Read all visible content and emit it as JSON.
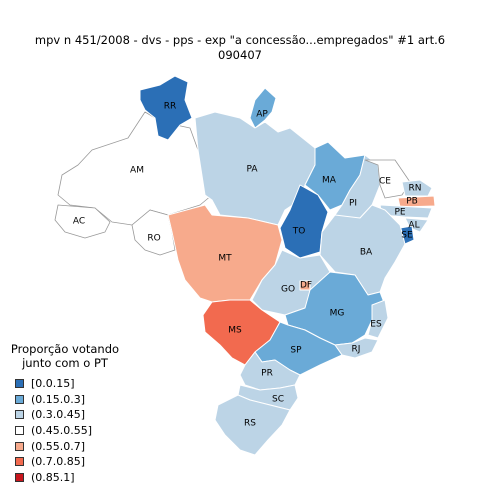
{
  "title_line1": "mpv n 451/2008 - dvs - pps - exp \"a concessão...empregados\" #1 art.6",
  "title_line2": "090407",
  "legend": {
    "title_line1": "Proporção votando",
    "title_line2": "junto com o PT",
    "items": [
      {
        "label": "[0.0.15]",
        "color": "#2b6fb6"
      },
      {
        "label": "(0.15.0.3]",
        "color": "#6aaad7"
      },
      {
        "label": "(0.3.0.45]",
        "color": "#bcd4e6"
      },
      {
        "label": "(0.45.0.55]",
        "color": "#ffffff"
      },
      {
        "label": "(0.55.0.7]",
        "color": "#f7aa8c"
      },
      {
        "label": "(0.7.0.85]",
        "color": "#f26a4f"
      },
      {
        "label": "(0.85.1]",
        "color": "#c8161d"
      }
    ]
  },
  "states": [
    {
      "abbr": "RR",
      "color": "#2b6fb6"
    },
    {
      "abbr": "AP",
      "color": "#6aaad7"
    },
    {
      "abbr": "AM",
      "color": "#ffffff"
    },
    {
      "abbr": "PA",
      "color": "#bcd4e6"
    },
    {
      "abbr": "MA",
      "color": "#6aaad7"
    },
    {
      "abbr": "CE",
      "color": "#ffffff"
    },
    {
      "abbr": "RN",
      "color": "#bcd4e6"
    },
    {
      "abbr": "PB",
      "color": "#f7aa8c"
    },
    {
      "abbr": "PE",
      "color": "#bcd4e6"
    },
    {
      "abbr": "AL",
      "color": "#bcd4e6"
    },
    {
      "abbr": "SE",
      "color": "#2b6fb6"
    },
    {
      "abbr": "PI",
      "color": "#bcd4e6"
    },
    {
      "abbr": "AC",
      "color": "#ffffff"
    },
    {
      "abbr": "RO",
      "color": "#ffffff"
    },
    {
      "abbr": "TO",
      "color": "#2b6fb6"
    },
    {
      "abbr": "BA",
      "color": "#bcd4e6"
    },
    {
      "abbr": "MT",
      "color": "#f7aa8c"
    },
    {
      "abbr": "GO",
      "color": "#bcd4e6"
    },
    {
      "abbr": "DF",
      "color": "#f7aa8c"
    },
    {
      "abbr": "MG",
      "color": "#6aaad7"
    },
    {
      "abbr": "ES",
      "color": "#bcd4e6"
    },
    {
      "abbr": "MS",
      "color": "#f26a4f"
    },
    {
      "abbr": "SP",
      "color": "#6aaad7"
    },
    {
      "abbr": "RJ",
      "color": "#bcd4e6"
    },
    {
      "abbr": "PR",
      "color": "#bcd4e6"
    },
    {
      "abbr": "SC",
      "color": "#bcd4e6"
    },
    {
      "abbr": "RS",
      "color": "#bcd4e6"
    }
  ]
}
